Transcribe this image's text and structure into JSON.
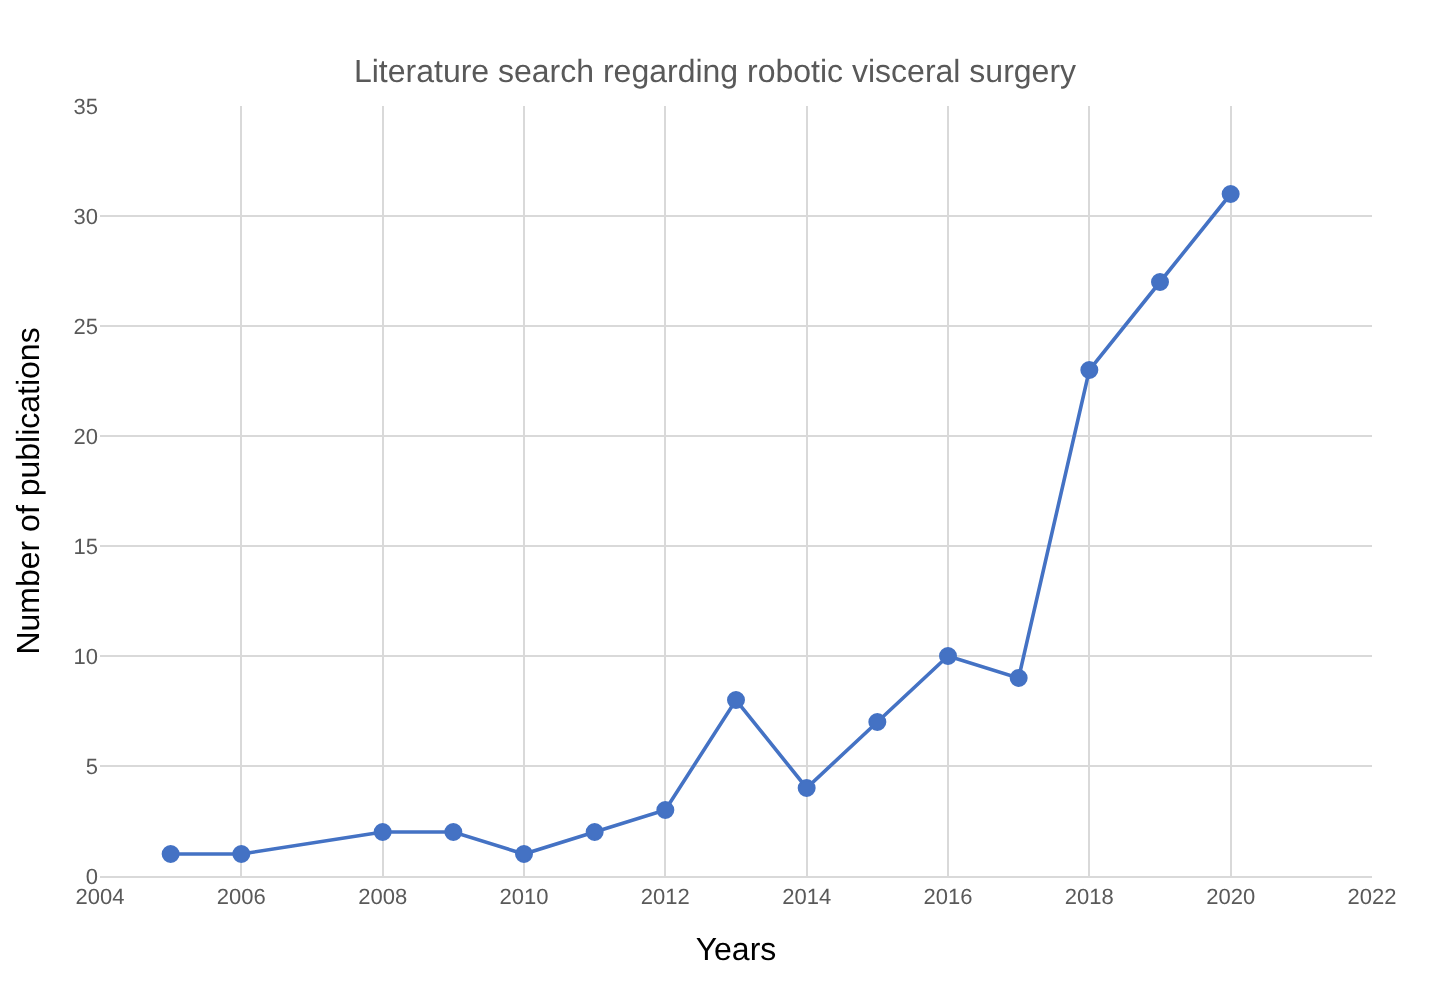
{
  "chart_data": {
    "type": "line",
    "title": "Literature search regarding robotic visceral surgery",
    "xlabel": "Years",
    "ylabel": "Number of publications",
    "x": [
      2005,
      2006,
      2008,
      2009,
      2010,
      2011,
      2012,
      2013,
      2014,
      2015,
      2016,
      2017,
      2018,
      2019,
      2020
    ],
    "series": [
      {
        "color": "#4472c4",
        "values": [
          1,
          1,
          2,
          2,
          1,
          2,
          3,
          8,
          4,
          7,
          10,
          9,
          23,
          27,
          31
        ]
      }
    ],
    "xlim": [
      2004,
      2022
    ],
    "xticks": [
      2004,
      2006,
      2008,
      2010,
      2012,
      2014,
      2016,
      2018,
      2020,
      2022
    ],
    "ylim": [
      0,
      35
    ],
    "yticks": [
      0,
      5,
      10,
      15,
      20,
      25,
      30,
      35
    ],
    "grid": true,
    "marker": "circle",
    "line_style": "solid"
  }
}
